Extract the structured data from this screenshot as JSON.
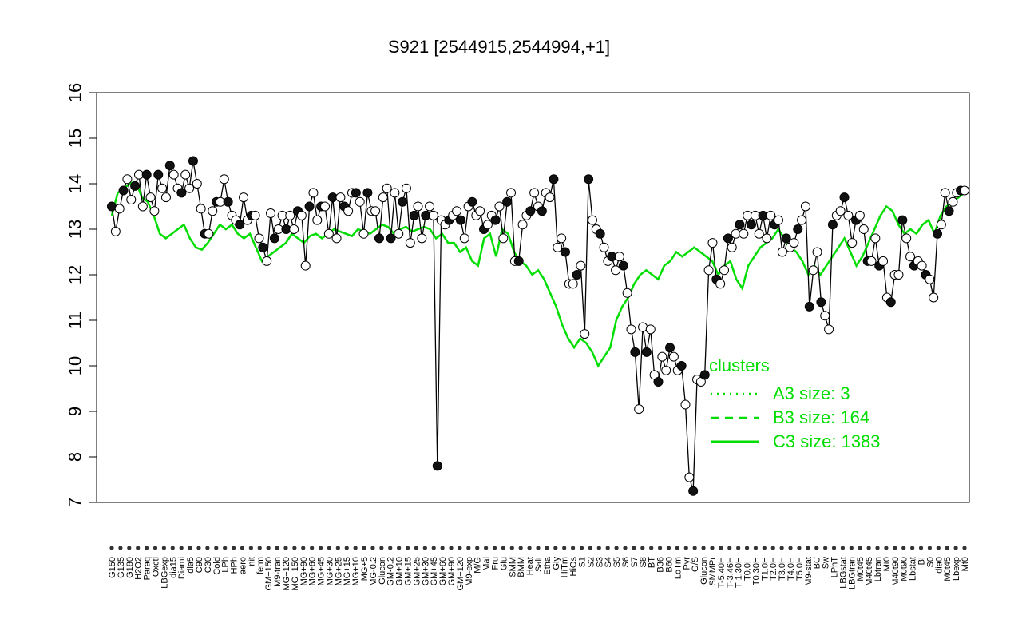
{
  "chart_data": {
    "type": "line",
    "title": "S921 [2544915,2544994,+1]",
    "xlabel": "",
    "ylabel": "",
    "ylim": [
      7,
      16
    ],
    "yticks": [
      7,
      8,
      9,
      10,
      11,
      12,
      13,
      14,
      15,
      16
    ],
    "x_tick_labels": [
      "G150",
      "G135",
      "G180",
      "H2O2",
      "Paraq",
      "Oxctl",
      "LBGexp",
      "dia15",
      "Diami",
      "dia5",
      "C90",
      "C30",
      "Cold",
      "LPh",
      "HPh",
      "aero",
      "nit",
      "ferm",
      "GM+150",
      "M9-tran",
      "MG+120",
      "MG+150",
      "MG+90",
      "MG+60",
      "MG+45",
      "MG+30",
      "MG+25",
      "MG+15",
      "MG+10",
      "MG+5",
      "MG-0.2",
      "Glucon",
      "GM-0.2",
      "GM+10",
      "GM+15",
      "GM+25",
      "GM+30",
      "GM+45",
      "GM+60",
      "GM+90",
      "GM+120",
      "M9-exp",
      "M/G",
      "Mal",
      "Fru",
      "Glu",
      "SMM",
      "BMM",
      "Heat",
      "Salt",
      "Etha",
      "Gly",
      "HiTm",
      "HiOs",
      "S1",
      "S2",
      "S3",
      "S4",
      "S5",
      "S6",
      "S7",
      "S8",
      "BT",
      "B36",
      "B60",
      "LoTm",
      "Pyr",
      "G/S",
      "Glucon",
      "SMMPr",
      "T-5.40H",
      "T-3.46H",
      "T-1.30H",
      "T0.0H",
      "T0.30H",
      "T1.0H",
      "T2.0H",
      "T3.0H",
      "T4.0H",
      "T5.0H",
      "M9-stat",
      "BC",
      "Sw",
      "LPhT",
      "LBGstat",
      "LBGtran",
      "M0t45",
      "M40t45",
      "Lbtran",
      "Mt0",
      "M40t90",
      "M0t90",
      "Lbstat",
      "BI",
      "S0",
      "dia0",
      "M0t45",
      "Lbexp",
      "Mt0"
    ],
    "legend": {
      "title": "clusters",
      "placement": "right",
      "entries": [
        {
          "label": "A3 size: 3",
          "style": "dotted"
        },
        {
          "label": "B3 size: 164",
          "style": "dashed"
        },
        {
          "label": "C3 size: 1383",
          "style": "solid"
        }
      ]
    },
    "series": [
      {
        "name": "S921",
        "color": "#000000",
        "values": [
          13.5,
          12.95,
          13.45,
          13.85,
          14.1,
          13.65,
          13.95,
          14.2,
          13.5,
          14.2,
          13.7,
          13.4,
          14.2,
          13.9,
          13.7,
          14.4,
          14.2,
          13.9,
          13.8,
          14.2,
          13.9,
          14.5,
          14.0,
          13.45,
          12.9,
          12.9,
          13.4,
          13.6,
          13.6,
          14.1,
          13.6,
          13.3,
          13.2,
          13.1,
          13.7,
          13.2,
          13.3,
          13.3,
          12.8,
          12.6,
          12.3,
          13.35,
          12.8,
          13.0,
          13.3,
          13.0,
          13.3,
          13.0,
          13.4,
          13.3,
          12.2,
          13.5,
          13.8,
          13.2,
          13.5,
          13.5,
          12.9,
          13.7,
          12.8,
          13.7,
          13.5,
          13.4,
          13.8,
          13.8,
          13.6,
          12.9,
          13.8,
          13.4,
          13.4,
          12.8,
          13.7,
          13.9,
          12.8,
          13.8,
          12.9,
          13.6,
          13.9,
          12.7,
          13.3,
          13.5,
          12.8,
          13.3,
          13.5,
          13.3,
          7.8,
          13.2,
          13.1,
          13.2,
          13.3,
          13.4,
          13.2,
          12.8,
          13.5,
          13.6,
          13.3,
          13.4,
          13.0,
          13.1,
          13.3,
          13.2,
          13.5,
          12.8,
          13.6,
          13.8,
          12.3,
          12.3,
          13.1,
          13.3,
          13.4,
          13.8,
          13.5,
          13.4,
          13.8,
          13.7,
          14.1,
          12.6,
          12.8,
          12.5,
          11.8,
          11.8,
          12.0,
          12.2,
          10.7,
          14.1,
          13.2,
          13.0,
          12.9,
          12.6,
          12.3,
          12.4,
          12.1,
          12.4,
          12.2,
          11.6,
          10.8,
          10.3,
          9.05,
          10.85,
          10.3,
          10.8,
          9.8,
          9.65,
          10.2,
          9.9,
          10.4,
          10.2,
          9.9,
          10.0,
          9.15,
          7.55,
          7.25,
          9.7,
          9.65,
          9.8,
          12.1,
          12.7,
          11.9,
          11.8,
          12.1,
          12.8,
          12.6,
          12.9,
          13.1,
          12.9,
          13.3,
          13.1,
          13.3,
          12.9,
          13.3,
          12.8,
          13.3,
          13.1,
          13.2,
          12.5,
          12.8,
          12.6,
          12.7,
          13.0,
          13.2,
          13.5,
          11.3,
          12.1,
          12.5,
          11.4,
          11.1,
          10.8,
          13.1,
          13.3,
          13.4,
          13.7,
          13.3,
          12.7,
          13.2,
          13.3,
          13.0,
          12.3,
          12.3,
          12.8,
          12.2,
          12.3,
          11.5,
          11.4,
          12.0,
          12.0,
          13.2,
          12.8,
          12.4,
          12.2,
          12.3,
          12.2,
          12.0,
          11.9,
          11.5,
          12.9,
          13.1,
          13.8,
          13.4,
          13.6,
          13.8,
          13.85,
          13.85
        ]
      },
      {
        "name": "C3 size: 1383",
        "color": "#00dd00",
        "values": [
          13.3,
          13.8,
          13.9,
          14.0,
          14.05,
          13.7,
          13.6,
          13.3,
          12.9,
          12.8,
          12.9,
          13.0,
          13.1,
          12.8,
          12.6,
          12.55,
          12.7,
          12.9,
          13.1,
          13.0,
          13.1,
          12.9,
          12.8,
          12.9,
          12.6,
          12.3,
          12.4,
          12.5,
          12.6,
          12.7,
          12.9,
          12.8,
          12.7,
          12.85,
          12.9,
          12.8,
          12.9,
          13.0,
          12.95,
          12.9,
          12.85,
          13.0,
          12.95,
          12.9,
          13.0,
          13.1,
          13.05,
          12.9,
          13.0,
          13.05,
          12.95,
          13.0,
          13.05,
          13.0,
          12.8,
          12.9,
          12.7,
          12.7,
          12.5,
          12.6,
          12.3,
          12.2,
          12.8,
          12.9,
          12.4,
          13.0,
          12.9,
          12.5,
          12.3,
          12.2,
          12.0,
          12.1,
          11.9,
          11.6,
          11.3,
          10.9,
          10.6,
          10.4,
          10.6,
          10.5,
          10.3,
          10.0,
          10.2,
          10.4,
          11.0,
          11.3,
          11.5,
          11.8,
          12.0,
          12.1,
          12.0,
          11.9,
          12.2,
          12.3,
          12.5,
          12.4,
          12.5,
          12.6,
          12.5,
          12.4,
          12.3,
          12.0,
          12.2,
          12.3,
          11.9,
          11.7,
          12.2,
          12.4,
          12.6,
          12.7,
          12.8,
          13.0,
          12.8,
          12.6,
          12.5,
          12.3,
          12.0,
          12.2,
          12.0,
          12.2,
          12.4,
          12.6,
          12.8,
          12.5,
          12.2,
          12.4,
          12.7,
          13.0,
          13.3,
          13.5,
          13.4,
          13.1,
          12.9,
          13.0,
          12.9,
          13.1,
          13.2,
          12.9,
          13.3,
          13.5,
          13.6,
          13.7,
          13.8
        ]
      }
    ]
  }
}
